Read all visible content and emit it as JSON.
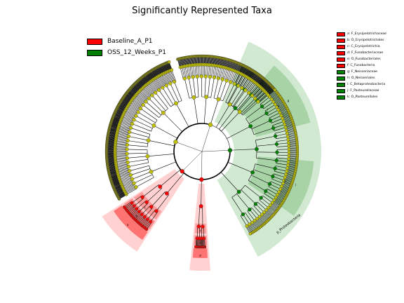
{
  "chart_data": {
    "type": "cladogram",
    "title": "Significantly Represented Taxa",
    "groups": [
      {
        "name": "Baseline_A_P1",
        "color": "#ff0000"
      },
      {
        "name": "OSS_12_Weeks_P1",
        "color": "#008000"
      }
    ],
    "taxa": [
      {
        "key": "a",
        "label": "a: F_Erysipelotrichaceae",
        "group": "Baseline_A_P1",
        "level": 5
      },
      {
        "key": "b",
        "label": "b: O_Erysipelotrichales",
        "group": "Baseline_A_P1",
        "level": 4
      },
      {
        "key": "c",
        "label": "c: C_Erysipelotrichia",
        "group": "Baseline_A_P1",
        "level": 3
      },
      {
        "key": "d",
        "label": "d: F_Fusobacteriaceae",
        "group": "Baseline_A_P1",
        "level": 5
      },
      {
        "key": "e",
        "label": "e: O_Fusobacteriales",
        "group": "Baseline_A_P1",
        "level": 4
      },
      {
        "key": "f",
        "label": "f: C_Fusobacteria",
        "group": "Baseline_A_P1",
        "level": 3
      },
      {
        "key": "g",
        "label": "g: F_Neisseriaceae",
        "group": "OSS_12_Weeks_P1",
        "level": 5
      },
      {
        "key": "h",
        "label": "h: O_Neisseriales",
        "group": "OSS_12_Weeks_P1",
        "level": 4
      },
      {
        "key": "i",
        "label": "i: C_Betaproteobacteria",
        "group": "OSS_12_Weeks_P1",
        "level": 3
      },
      {
        "key": "j",
        "label": "j: F_Pasteurellaceae",
        "group": "OSS_12_Weeks_P1",
        "level": 5
      },
      {
        "key": "k",
        "label": "k: O_Pasteurellales",
        "group": "OSS_12_Weeks_P1",
        "level": 4
      }
    ],
    "clade_labels": [
      {
        "text": "p_Proteobacteria",
        "group": "OSS_12_Weeks_P1"
      }
    ],
    "node_color": "#bfbf00",
    "grid": false
  }
}
